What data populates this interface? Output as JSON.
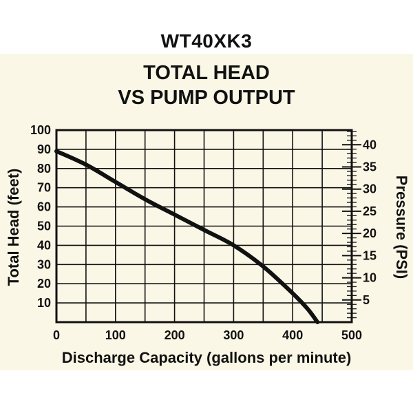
{
  "chart_data": {
    "type": "line",
    "title": "WT40XK3",
    "subtitle_lines": [
      "TOTAL HEAD",
      "VS PUMP OUTPUT"
    ],
    "xlabel": "Discharge Capacity (gallons per minute)",
    "ylabel": "Total Head (feet)",
    "y2label": "Pressure (PSI)",
    "xlim": [
      0,
      500
    ],
    "ylim": [
      0,
      100
    ],
    "y2lim": [
      0,
      43.3
    ],
    "x_ticks": [
      0,
      100,
      200,
      300,
      400,
      500
    ],
    "y_ticks": [
      10,
      20,
      30,
      40,
      50,
      60,
      70,
      80,
      90,
      100
    ],
    "y2_ticks": [
      5,
      10,
      15,
      20,
      25,
      30,
      35,
      40
    ],
    "grid": true,
    "series": [
      {
        "x": [
          0,
          50,
          100,
          150,
          200,
          250,
          300,
          350,
          400,
          425,
          442
        ],
        "y": [
          89,
          82,
          73,
          64,
          56,
          48,
          40,
          29,
          15,
          7,
          0
        ]
      }
    ],
    "colors": {
      "line": "#111111",
      "grid": "#111111",
      "background": "#fbf7e6"
    }
  }
}
